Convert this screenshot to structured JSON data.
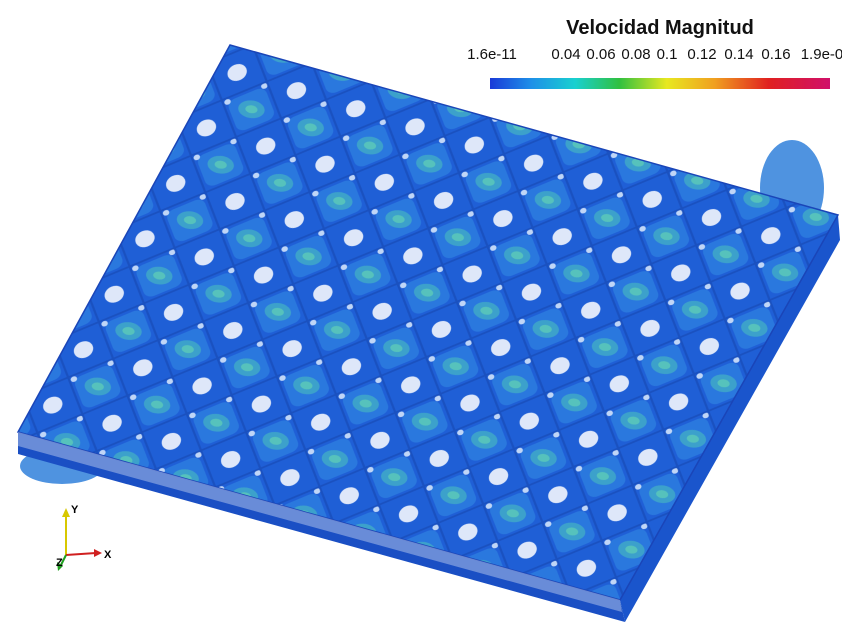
{
  "colorbar": {
    "title": "Velocidad Magnitud",
    "labels": [
      "1.6e-11",
      "0.04",
      "0.06",
      "0.08",
      "0.1",
      "0.12",
      "0.14",
      "0.16",
      "1.9e-0"
    ]
  },
  "axes_triad": {
    "x": "X",
    "y": "Y",
    "z": "Z"
  }
}
